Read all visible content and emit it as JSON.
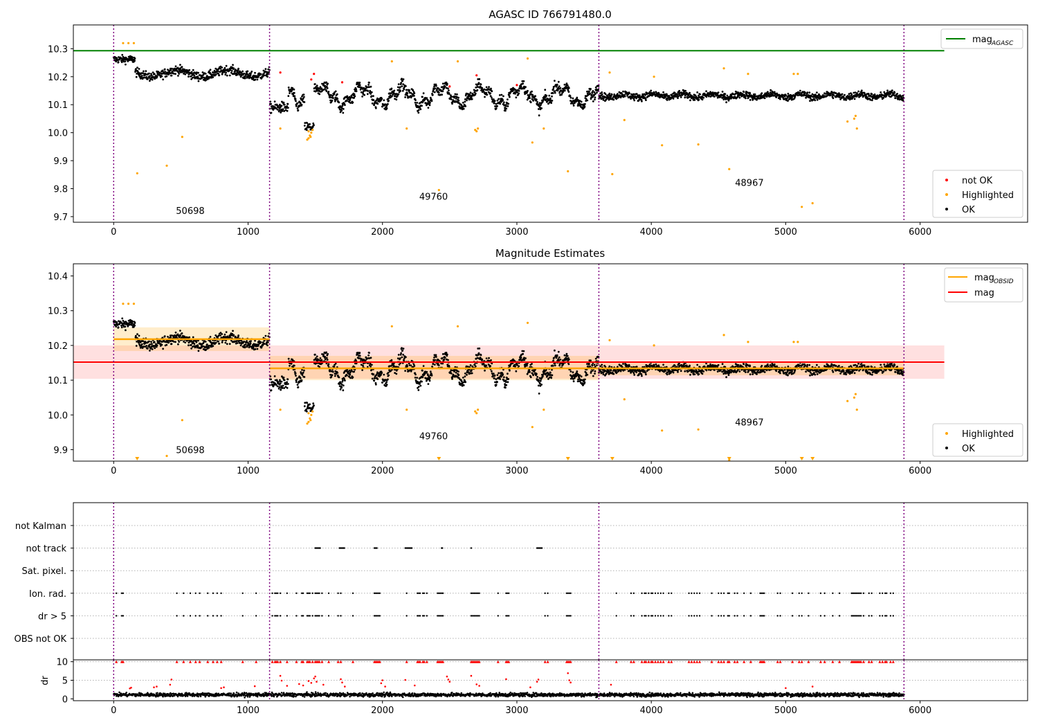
{
  "colors": {
    "ok": "#000000",
    "not_ok": "#ff0000",
    "highlighted": "#ffa500",
    "mag_agasc": "#008000",
    "mag_obsid": "#ffa500",
    "mag": "#ff0000",
    "obsid_line": "#800080",
    "grid": "#b0b0b0"
  },
  "chart_data": [
    {
      "type": "scatter",
      "title": "AGASC ID 766791480.0",
      "xlim": [
        -300,
        6800
      ],
      "ylim": [
        9.68,
        10.385
      ],
      "xticks": [
        0,
        1000,
        2000,
        3000,
        4000,
        5000,
        6000
      ],
      "yticks": [
        9.7,
        9.8,
        9.9,
        10.0,
        10.1,
        10.2,
        10.3
      ],
      "obsid_boundaries": [
        0,
        1160,
        3610,
        5880
      ],
      "obsid_labels": [
        {
          "text": "50698",
          "x": 570,
          "y": 9.71
        },
        {
          "text": "49760",
          "x": 2380,
          "y": 9.76
        },
        {
          "text": "48967",
          "x": 4730,
          "y": 9.81
        }
      ],
      "mag_agasc": {
        "value": 10.293,
        "x": [
          -300,
          6180
        ]
      },
      "legend_lines": [
        {
          "label_main": "mag",
          "label_sub": "AGASC",
          "color_key": "mag_agasc"
        }
      ],
      "legend_points": [
        {
          "label": "not OK",
          "color_key": "not_ok"
        },
        {
          "label": "Highlighted",
          "color_key": "highlighted"
        },
        {
          "label": "OK",
          "color_key": "ok"
        }
      ],
      "highlighted_points": [
        [
          70,
          10.32
        ],
        [
          110,
          10.32
        ],
        [
          150,
          10.32
        ],
        [
          175,
          9.855
        ],
        [
          395,
          9.882
        ],
        [
          510,
          9.985
        ],
        [
          1240,
          10.015
        ],
        [
          1440,
          9.975
        ],
        [
          1450,
          9.98
        ],
        [
          1460,
          9.99
        ],
        [
          1470,
          10.0
        ],
        [
          1480,
          10.01
        ],
        [
          1450,
          10.005
        ],
        [
          1465,
          9.985
        ],
        [
          2070,
          10.255
        ],
        [
          2180,
          10.015
        ],
        [
          2420,
          9.795
        ],
        [
          2560,
          10.255
        ],
        [
          2690,
          10.01
        ],
        [
          2700,
          10.005
        ],
        [
          2710,
          10.015
        ],
        [
          3080,
          10.265
        ],
        [
          3115,
          9.965
        ],
        [
          3200,
          10.015
        ],
        [
          3380,
          9.862
        ],
        [
          3690,
          10.215
        ],
        [
          3710,
          9.852
        ],
        [
          3800,
          10.045
        ],
        [
          4020,
          10.2
        ],
        [
          4080,
          9.955
        ],
        [
          4350,
          9.958
        ],
        [
          4540,
          10.23
        ],
        [
          4580,
          9.87
        ],
        [
          4720,
          10.21
        ],
        [
          5060,
          10.21
        ],
        [
          5090,
          10.21
        ],
        [
          5120,
          9.735
        ],
        [
          5200,
          9.748
        ],
        [
          5460,
          10.04
        ],
        [
          5510,
          10.05
        ],
        [
          5520,
          10.06
        ],
        [
          5530,
          10.015
        ]
      ],
      "not_ok_points": [
        [
          1240,
          10.215
        ],
        [
          1490,
          10.21
        ],
        [
          1700,
          10.18
        ],
        [
          2500,
          10.165
        ],
        [
          2700,
          10.205
        ],
        [
          3000,
          10.17
        ],
        [
          1470,
          10.19
        ]
      ]
    },
    {
      "type": "scatter",
      "title": "Magnitude Estimates",
      "xlim": [
        -300,
        6800
      ],
      "ylim": [
        9.867,
        10.435
      ],
      "xticks": [
        0,
        1000,
        2000,
        3000,
        4000,
        5000,
        6000
      ],
      "yticks": [
        9.9,
        10.0,
        10.1,
        10.2,
        10.3,
        10.4
      ],
      "obsid_boundaries": [
        0,
        1160,
        3610,
        5880
      ],
      "obsid_labels": [
        {
          "text": "50698",
          "x": 570,
          "y": 9.89
        },
        {
          "text": "49760",
          "x": 2380,
          "y": 9.93
        },
        {
          "text": "48967",
          "x": 4730,
          "y": 9.97
        }
      ],
      "mag": {
        "value": 10.152,
        "band": [
          10.104,
          10.2
        ],
        "x": [
          -300,
          6180
        ]
      },
      "mag_obsid": [
        {
          "x": [
            0,
            1160
          ],
          "value": 10.218,
          "band": [
            10.184,
            10.252
          ]
        },
        {
          "x": [
            1160,
            3610
          ],
          "value": 10.134,
          "band": [
            10.1,
            10.17
          ]
        },
        {
          "x": [
            3610,
            5880
          ],
          "value": 10.134,
          "band": [
            10.114,
            10.154
          ]
        }
      ],
      "legend_lines": [
        {
          "label_main": "mag",
          "label_sub": "OBSID",
          "color_key": "mag_obsid"
        },
        {
          "label_main": "mag",
          "label_sub": "",
          "color_key": "mag"
        }
      ],
      "legend_points": [
        {
          "label": "Highlighted",
          "color_key": "highlighted"
        },
        {
          "label": "OK",
          "color_key": "ok"
        }
      ],
      "clipped_low_x": [
        175,
        2420,
        3380,
        3710,
        4580,
        5120,
        5200
      ]
    },
    {
      "type": "scatter",
      "title": "",
      "xlim": [
        -300,
        6800
      ],
      "xticks": [
        0,
        1000,
        2000,
        3000,
        4000,
        5000,
        6000
      ],
      "obsid_boundaries": [
        0,
        1160,
        3610,
        5880
      ],
      "flag_rows": [
        "not Kalman",
        "not track",
        "Sat. pixel.",
        "Ion. rad.",
        "dr > 5",
        "OBS not OK"
      ],
      "not_track_ranges": [
        [
          1500,
          1540
        ],
        [
          1680,
          1720
        ],
        [
          1940,
          1960
        ],
        [
          2170,
          2220
        ],
        [
          2440,
          2450
        ],
        [
          2660,
          2665
        ],
        [
          3150,
          3190
        ]
      ],
      "event_x": [
        20,
        60,
        70,
        470,
        520,
        570,
        610,
        640,
        700,
        740,
        770,
        800,
        960,
        1060,
        1180,
        1200,
        1210,
        1220,
        1240,
        1290,
        1360,
        1400,
        1410,
        1440,
        1450,
        1460,
        1480,
        1500,
        1510,
        1520,
        1530,
        1550,
        1600,
        1670,
        1690,
        1780,
        1940,
        1950,
        1960,
        1970,
        1980,
        2180,
        2260,
        2270,
        2280,
        2300,
        2310,
        2330,
        2410,
        2420,
        2430,
        2440,
        2450,
        2660,
        2670,
        2680,
        2690,
        2700,
        2710,
        2720,
        2860,
        2920,
        2930,
        2940,
        3210,
        3230,
        3370,
        3380,
        3390,
        3400,
        3740,
        3850,
        3870,
        3930,
        3950,
        3960,
        3980,
        4000,
        4010,
        4030,
        4050,
        4070,
        4090,
        4130,
        4150,
        4280,
        4300,
        4320,
        4340,
        4360,
        4450,
        4500,
        4520,
        4540,
        4570,
        4580,
        4620,
        4640,
        4690,
        4740,
        4810,
        4820,
        4830,
        4840,
        4940,
        4960,
        5050,
        5100,
        5120,
        5170,
        5260,
        5290,
        5350,
        5400,
        5490,
        5500,
        5510,
        5520,
        5530,
        5540,
        5550,
        5560,
        5580,
        5620,
        5640,
        5700,
        5720,
        5740,
        5750,
        5780,
        5800
      ]
    },
    {
      "type": "scatter",
      "title": "",
      "ylabel": "dr",
      "xlim": [
        -300,
        6800
      ],
      "ylim": [
        -0.5,
        10.5
      ],
      "xticks": [
        0,
        1000,
        2000,
        3000,
        4000,
        5000,
        6000
      ],
      "yticks": [
        0,
        5,
        10
      ],
      "obsid_boundaries": [
        0,
        1160,
        3610,
        5880
      ],
      "dr_outliers": [
        [
          120,
          2.8
        ],
        [
          130,
          3.0
        ],
        [
          300,
          3.1
        ],
        [
          320,
          3.3
        ],
        [
          420,
          3.8
        ],
        [
          430,
          5.2
        ],
        [
          800,
          2.9
        ],
        [
          820,
          3.1
        ],
        [
          1050,
          3.4
        ],
        [
          1240,
          6.2
        ],
        [
          1250,
          4.9
        ],
        [
          1290,
          3.5
        ],
        [
          1380,
          4.0
        ],
        [
          1410,
          3.6
        ],
        [
          1450,
          4.8
        ],
        [
          1470,
          4.3
        ],
        [
          1490,
          5.5
        ],
        [
          1500,
          6.0
        ],
        [
          1510,
          4.6
        ],
        [
          1560,
          3.8
        ],
        [
          1690,
          5.3
        ],
        [
          1700,
          4.4
        ],
        [
          1720,
          3.3
        ],
        [
          1990,
          4.2
        ],
        [
          2000,
          5.0
        ],
        [
          2020,
          3.3
        ],
        [
          2170,
          5.1
        ],
        [
          2240,
          3.6
        ],
        [
          2480,
          6.0
        ],
        [
          2490,
          5.2
        ],
        [
          2500,
          4.6
        ],
        [
          2660,
          6.2
        ],
        [
          2700,
          3.9
        ],
        [
          2720,
          3.5
        ],
        [
          2920,
          5.3
        ],
        [
          3100,
          3.1
        ],
        [
          3150,
          4.6
        ],
        [
          3160,
          5.2
        ],
        [
          3380,
          6.9
        ],
        [
          3390,
          5.0
        ],
        [
          3400,
          4.4
        ],
        [
          3700,
          3.8
        ],
        [
          5000,
          2.9
        ],
        [
          5200,
          3.3
        ]
      ],
      "capped_x": [
        20,
        60,
        70,
        470,
        520,
        570,
        610,
        640,
        700,
        740,
        770,
        800,
        960,
        1060,
        1180,
        1200,
        1210,
        1220,
        1240,
        1290,
        1360,
        1400,
        1410,
        1440,
        1450,
        1460,
        1480,
        1500,
        1510,
        1520,
        1530,
        1550,
        1600,
        1670,
        1690,
        1780,
        1940,
        1950,
        1960,
        1970,
        1980,
        2180,
        2260,
        2270,
        2280,
        2300,
        2310,
        2330,
        2410,
        2420,
        2430,
        2440,
        2450,
        2660,
        2670,
        2680,
        2690,
        2700,
        2710,
        2720,
        2860,
        2920,
        2930,
        2940,
        3210,
        3230,
        3370,
        3380,
        3390,
        3400,
        3740,
        3850,
        3870,
        3930,
        3950,
        3960,
        3980,
        4000,
        4010,
        4030,
        4050,
        4070,
        4090,
        4130,
        4150,
        4280,
        4300,
        4320,
        4340,
        4360,
        4450,
        4500,
        4520,
        4540,
        4570,
        4580,
        4620,
        4640,
        4690,
        4740,
        4810,
        4820,
        4830,
        4840,
        4940,
        4960,
        5050,
        5100,
        5120,
        5170,
        5260,
        5290,
        5350,
        5400,
        5490,
        5500,
        5510,
        5520,
        5530,
        5540,
        5550,
        5560,
        5580,
        5620,
        5640,
        5700,
        5720,
        5740,
        5750,
        5780,
        5800
      ]
    }
  ]
}
